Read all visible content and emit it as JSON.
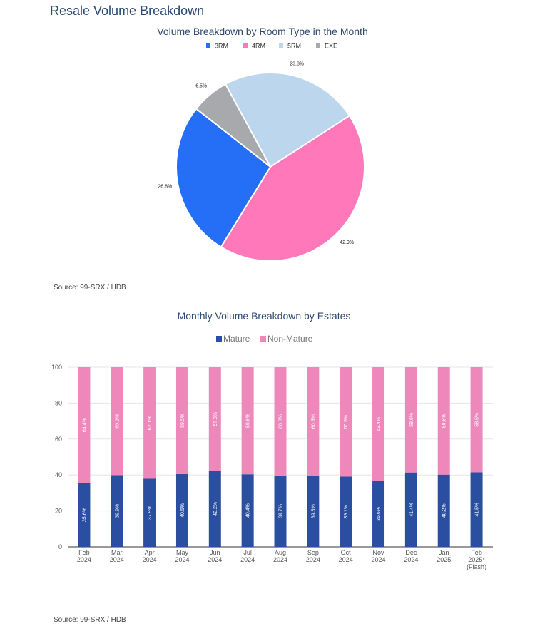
{
  "page": {
    "title": "Resale Volume Breakdown",
    "source_top": "Source: 99-SRX / HDB",
    "source_bottom": "Source: 99-SRX / HDB"
  },
  "chart_data": [
    {
      "type": "pie",
      "title": "Volume Breakdown by Room Type in the Month",
      "legend_position": "top",
      "slices": [
        {
          "label": "3RM",
          "value": 26.8,
          "display": "26.8%",
          "color": "#246ff6"
        },
        {
          "label": "4RM",
          "value": 42.9,
          "display": "42.9%",
          "color": "#ff78b9"
        },
        {
          "label": "5RM",
          "value": 23.8,
          "display": "23.8%",
          "color": "#bcd6ee"
        },
        {
          "label": "EXE",
          "value": 6.5,
          "display": "6.5%",
          "color": "#a8a9ad"
        }
      ],
      "legend_order": [
        "3RM",
        "4RM",
        "5RM",
        "EXE"
      ]
    },
    {
      "type": "bar",
      "stacked": true,
      "title": "Monthly Volume Breakdown by Estates",
      "legend_position": "top",
      "ylim": [
        0,
        100
      ],
      "yticks": [
        0,
        20,
        40,
        60,
        80,
        100
      ],
      "grid": true,
      "categories": [
        [
          "Feb",
          "2024"
        ],
        [
          "Mar",
          "2024"
        ],
        [
          "Apr",
          "2024"
        ],
        [
          "May",
          "2024"
        ],
        [
          "Jun",
          "2024"
        ],
        [
          "Jul",
          "2024"
        ],
        [
          "Aug",
          "2024"
        ],
        [
          "Sep",
          "2024"
        ],
        [
          "Oct",
          "2024"
        ],
        [
          "Nov",
          "2024"
        ],
        [
          "Dec",
          "2024"
        ],
        [
          "Jan",
          "2025"
        ],
        [
          "Feb",
          "2025*",
          "(Flash)"
        ]
      ],
      "series": [
        {
          "name": "Mature",
          "color": "#2a4fa0",
          "values": [
            35.6,
            39.9,
            37.9,
            40.5,
            42.2,
            40.4,
            39.7,
            39.5,
            39.1,
            36.6,
            41.4,
            40.2,
            41.5
          ],
          "labels": [
            "35.6%",
            "39.9%",
            "37.9%",
            "40.5%",
            "42.2%",
            "40.4%",
            "39.7%",
            "39.5%",
            "39.1%",
            "36.6%",
            "41.4%",
            "40.2%",
            "41.5%"
          ]
        },
        {
          "name": "Non-Mature",
          "color": "#ee88bb",
          "values": [
            64.4,
            60.1,
            62.1,
            59.5,
            57.8,
            59.6,
            60.3,
            60.5,
            60.9,
            63.4,
            58.6,
            59.8,
            58.5
          ],
          "labels": [
            "64.4%",
            "60.1%",
            "62.1%",
            "59.5%",
            "57.8%",
            "59.6%",
            "60.3%",
            "60.5%",
            "60.9%",
            "63.4%",
            "58.6%",
            "59.8%",
            "58.5%"
          ]
        }
      ]
    }
  ]
}
